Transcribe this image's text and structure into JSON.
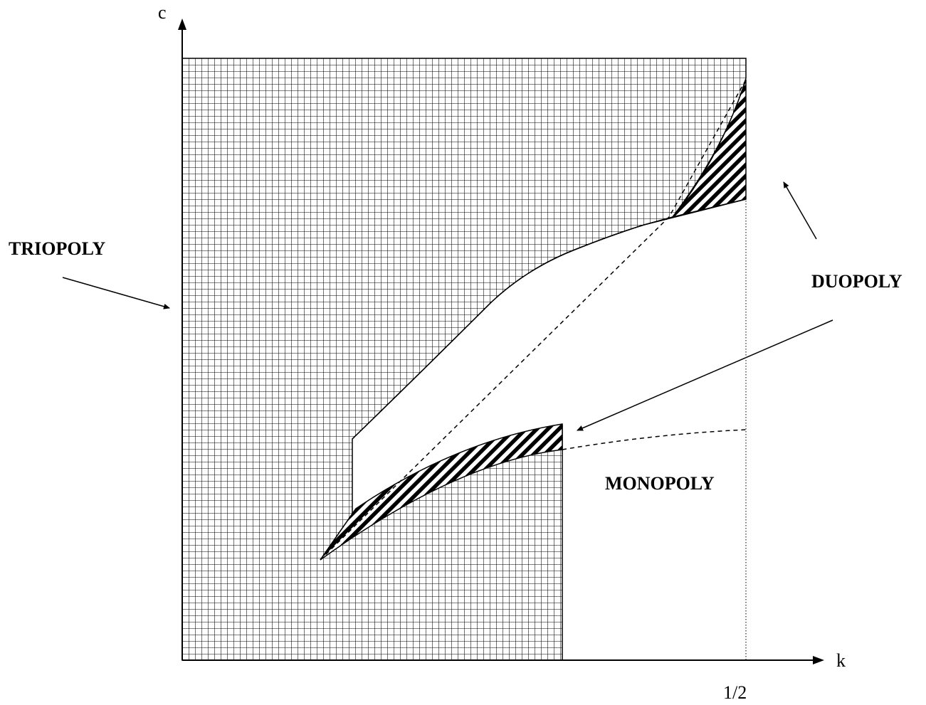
{
  "axes": {
    "y_label": "c",
    "x_label": "k",
    "x_tick": "1/2"
  },
  "regions": {
    "triopoly": "TRIOPOLY",
    "duopoly": "DUOPOLY",
    "monopoly": "MONOPOLY"
  }
}
